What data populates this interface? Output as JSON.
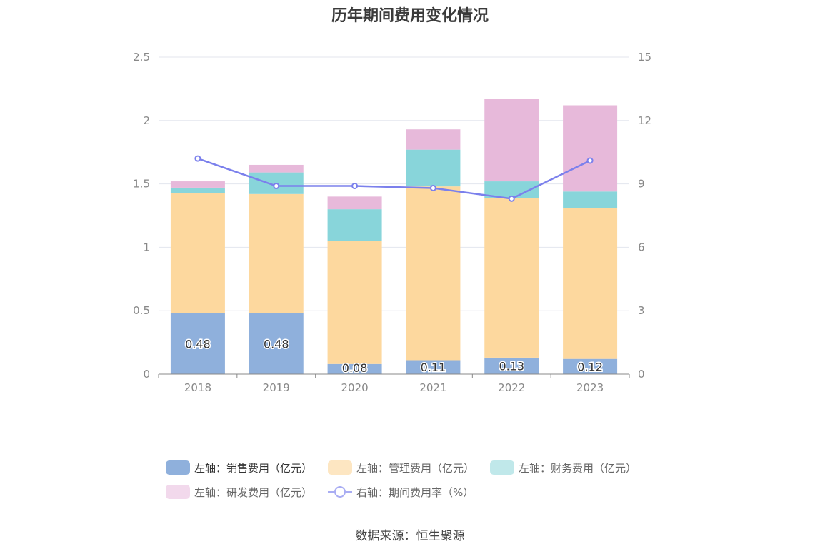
{
  "chart_data": {
    "type": "bar",
    "title": "历年期间费用变化情况",
    "categories": [
      "2018",
      "2019",
      "2020",
      "2021",
      "2022",
      "2023"
    ],
    "series": [
      {
        "name": "左轴：销售费用（亿元）",
        "axis": "left",
        "type": "bar",
        "color": "#8fb0dc",
        "values": [
          0.48,
          0.48,
          0.08,
          0.11,
          0.13,
          0.12
        ]
      },
      {
        "name": "左轴：管理费用（亿元）",
        "axis": "left",
        "type": "bar",
        "color": "#fdd89e",
        "values": [
          0.95,
          0.94,
          0.97,
          1.37,
          1.26,
          1.19
        ]
      },
      {
        "name": "左轴：财务费用（亿元）",
        "axis": "left",
        "type": "bar",
        "color": "#88d5da",
        "values": [
          0.04,
          0.17,
          0.25,
          0.29,
          0.13,
          0.13
        ]
      },
      {
        "name": "左轴：研发费用（亿元）",
        "axis": "left",
        "type": "bar",
        "color": "#e7b9da",
        "values": [
          0.05,
          0.06,
          0.1,
          0.16,
          0.65,
          0.68
        ]
      },
      {
        "name": "右轴：期间费用率（%）",
        "axis": "right",
        "type": "line",
        "color": "#7b80ec",
        "values": [
          10.2,
          8.9,
          8.9,
          8.8,
          8.3,
          10.1
        ]
      }
    ],
    "data_labels": [
      "0.48",
      "0.48",
      "0.08",
      "0.11",
      "0.13",
      "0.12"
    ],
    "y_left": {
      "min": 0,
      "max": 2.5,
      "ticks": [
        "0",
        "0.5",
        "1",
        "1.5",
        "2",
        "2.5"
      ]
    },
    "y_right": {
      "min": 0,
      "max": 15,
      "ticks": [
        "0",
        "3",
        "6",
        "9",
        "12",
        "15"
      ]
    },
    "grid": true,
    "legend_position": "bottom"
  },
  "legend": {
    "sales": "左轴：销售费用（亿元）",
    "admin": "左轴：管理费用（亿元）",
    "finance": "左轴：财务费用（亿元）",
    "rnd": "左轴：研发费用（亿元）",
    "rate": "右轴：期间费用率（%）"
  },
  "colors": {
    "sales": "#8fb0dc",
    "admin": "#fde6c2",
    "finance": "#c0e8ea",
    "rnd": "#f2d9ec"
  },
  "source": "数据来源：恒生聚源"
}
